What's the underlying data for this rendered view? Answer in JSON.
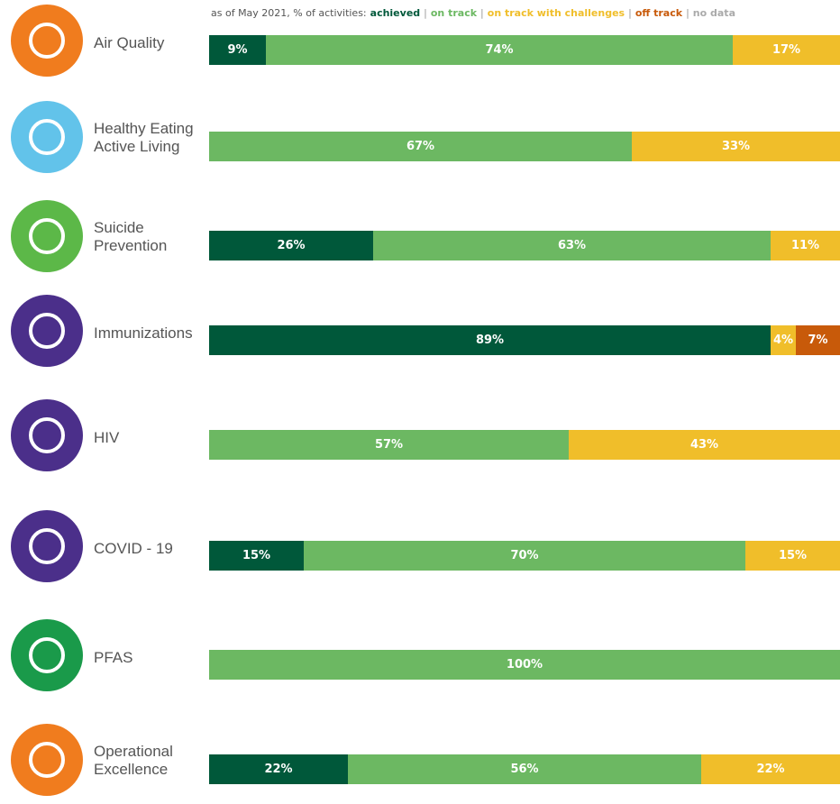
{
  "chart_data": {
    "type": "bar",
    "orientation": "horizontal",
    "stacked": true,
    "legend_prefix": "as of May 2021, % of activities:",
    "legend_separator": "|",
    "categories": [
      "Air Quality",
      "Healthy Eating\nActive Living",
      "Suicide\nPrevention",
      "Immunizations",
      "HIV",
      "COVID - 19",
      "PFAS",
      "Operational\nExcellence"
    ],
    "xlim": [
      0,
      100
    ],
    "series": [
      {
        "name": "achieved",
        "color": "#00583a",
        "values": [
          9,
          null,
          26,
          89,
          null,
          15,
          null,
          22
        ],
        "value_labels": [
          "9%",
          null,
          "26%",
          "89%",
          null,
          "15%",
          null,
          "22%"
        ]
      },
      {
        "name": "on track",
        "color": "#6cb862",
        "values": [
          74,
          67,
          63,
          null,
          57,
          70,
          100,
          56
        ],
        "value_labels": [
          "74%",
          "67%",
          "63%",
          null,
          "57%",
          "70%",
          "100%",
          "56%"
        ]
      },
      {
        "name": "on track with challenges",
        "color": "#f0be2a",
        "values": [
          17,
          33,
          11,
          4,
          43,
          15,
          null,
          22
        ],
        "value_labels": [
          "17%",
          "33%",
          "11%",
          "4%",
          "43%",
          "15%",
          null,
          "22%"
        ]
      },
      {
        "name": "off track",
        "color": "#c85a0a",
        "values": [
          null,
          null,
          null,
          7,
          null,
          null,
          null,
          null
        ],
        "value_labels": [
          null,
          null,
          null,
          "7%",
          null,
          null,
          null,
          null
        ]
      },
      {
        "name": "no data",
        "color": "#aaaaaa",
        "values": [
          null,
          null,
          null,
          null,
          null,
          null,
          null,
          null
        ]
      }
    ]
  }
}
